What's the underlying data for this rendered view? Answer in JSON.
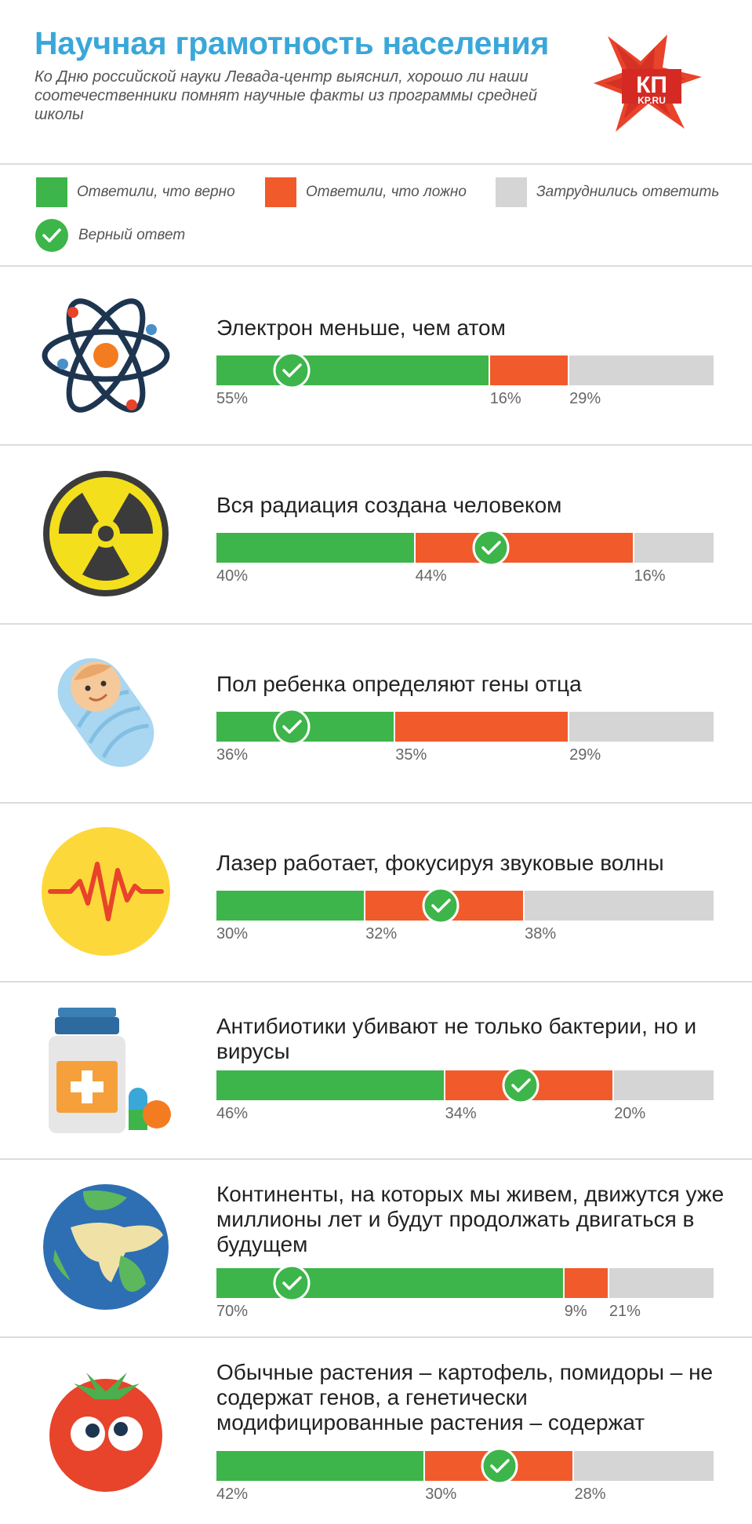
{
  "header": {
    "title": "Научная грамотность населения",
    "subtitle": "Ко Дню российской науки Левада-центр выяснил, хорошо ли наши соотечественники помнят научные факты из программы средней школы",
    "logo_top": "КП",
    "logo_bottom": "KP.RU"
  },
  "legend": {
    "true_label": "Ответили, что верно",
    "false_label": "Ответили, что ложно",
    "unsure_label": "Затруднились ответить",
    "correct_label": "Верный ответ"
  },
  "colors": {
    "true": "#3db54a",
    "false": "#f15a2b",
    "unsure": "#d5d5d5",
    "title": "#3aa7d9"
  },
  "chart_data": {
    "type": "bar",
    "orientation": "horizontal-stacked",
    "series": [
      {
        "name": "Ответили, что верно",
        "values": [
          55,
          40,
          36,
          30,
          46,
          70,
          42
        ]
      },
      {
        "name": "Ответили, что ложно",
        "values": [
          16,
          44,
          35,
          32,
          34,
          9,
          30
        ]
      },
      {
        "name": "Затруднились ответить",
        "values": [
          29,
          16,
          29,
          38,
          20,
          21,
          28
        ]
      }
    ],
    "legend_position": "top",
    "items": [
      {
        "question": "Электрон меньше, чем атом",
        "icon": "atom-icon",
        "true": 55,
        "false": 16,
        "unsure": 29,
        "true_label": "55%",
        "false_label": "16%",
        "unsure_label": "29%",
        "correct": "true"
      },
      {
        "question": "Вся радиация создана человеком",
        "icon": "radiation-icon",
        "true": 40,
        "false": 44,
        "unsure": 16,
        "true_label": "40%",
        "false_label": "44%",
        "unsure_label": "16%",
        "correct": "false"
      },
      {
        "question": "Пол ребенка определяют гены отца",
        "icon": "baby-icon",
        "true": 36,
        "false": 35,
        "unsure": 29,
        "true_label": "36%",
        "false_label": "35%",
        "unsure_label": "29%",
        "correct": "true"
      },
      {
        "question": "Лазер работает, фокусируя звуковые волны",
        "icon": "pulse-icon",
        "true": 30,
        "false": 32,
        "unsure": 38,
        "true_label": "30%",
        "false_label": "32%",
        "unsure_label": "38%",
        "correct": "false"
      },
      {
        "question": "Антибиотики убивают не только бактерии, но и вирусы",
        "icon": "medicine-bottle-icon",
        "true": 46,
        "false": 34,
        "unsure": 20,
        "true_label": "46%",
        "false_label": "34%",
        "unsure_label": "20%",
        "correct": "false"
      },
      {
        "question": "Континенты, на которых мы живем, движутся уже миллионы лет и будут продолжать двигаться в будущем",
        "icon": "globe-icon",
        "true": 70,
        "false": 9,
        "unsure": 21,
        "true_label": "70%",
        "false_label": "9%",
        "unsure_label": "21%",
        "correct": "true"
      },
      {
        "question": "Обычные растения – картофель, помидоры – не содержат генов, а генетически модифицированные растения – содержат",
        "icon": "tomato-icon",
        "true": 42,
        "false": 30,
        "unsure": 28,
        "true_label": "42%",
        "false_label": "30%",
        "unsure_label": "28%",
        "correct": "false"
      }
    ]
  }
}
